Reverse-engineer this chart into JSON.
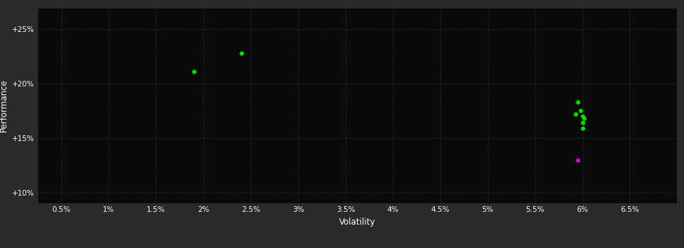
{
  "background_color": "#2a2a2a",
  "plot_bg_color": "#0a0a0a",
  "grid_color": "#1a4a1a",
  "text_color": "#ffffff",
  "xlabel": "Volatility",
  "ylabel": "Performance",
  "xlim": [
    0.0025,
    0.07
  ],
  "ylim": [
    0.09,
    0.27
  ],
  "xticks": [
    0.005,
    0.01,
    0.015,
    0.02,
    0.025,
    0.03,
    0.035,
    0.04,
    0.045,
    0.05,
    0.055,
    0.06,
    0.065
  ],
  "yticks": [
    0.1,
    0.15,
    0.2,
    0.25
  ],
  "green_points": [
    [
      0.019,
      0.211
    ],
    [
      0.024,
      0.228
    ],
    [
      0.0595,
      0.183
    ],
    [
      0.0598,
      0.175
    ],
    [
      0.06,
      0.17
    ],
    [
      0.0602,
      0.168
    ],
    [
      0.06,
      0.164
    ],
    [
      0.06,
      0.159
    ],
    [
      0.0593,
      0.172
    ]
  ],
  "magenta_points": [
    [
      0.0595,
      0.13
    ]
  ],
  "green_color": "#00dd00",
  "magenta_color": "#dd00dd",
  "point_size": 20,
  "marker": "o",
  "tick_fontsize": 7.5,
  "label_fontsize": 8.5
}
